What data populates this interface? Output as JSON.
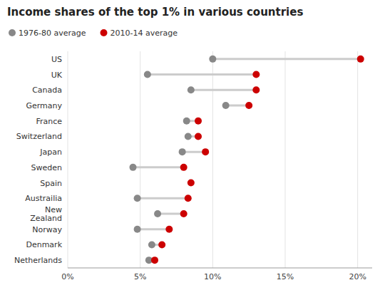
{
  "chart_data": {
    "type": "dumbbell",
    "title": "Income shares of the top 1% in various countries",
    "categories": [
      "US",
      "UK",
      "Canada",
      "Germany",
      "France",
      "Switzerland",
      "Japan",
      "Sweden",
      "Spain",
      "Austrailia",
      "New\nZealand",
      "Norway",
      "Denmark",
      "Netherlands"
    ],
    "series": [
      {
        "name": "1976-80 average",
        "color": "#888888",
        "values": [
          10.0,
          5.5,
          8.5,
          10.9,
          8.2,
          8.3,
          7.9,
          4.5,
          null,
          4.8,
          6.2,
          4.8,
          5.8,
          5.6
        ]
      },
      {
        "name": "2010-14 average",
        "color": "#cc0000",
        "values": [
          20.2,
          13.0,
          13.0,
          12.5,
          9.0,
          9.0,
          9.5,
          8.0,
          8.5,
          8.3,
          8.0,
          7.0,
          6.5,
          6.0
        ]
      }
    ],
    "orientation": "horizontal",
    "xlim": [
      0,
      21
    ],
    "xticks": [
      {
        "value": 0,
        "label": "0%"
      },
      {
        "value": 5,
        "label": "5%"
      },
      {
        "value": 10,
        "label": "10%"
      },
      {
        "value": 15,
        "label": "15%"
      },
      {
        "value": 20,
        "label": "20%"
      }
    ],
    "grid": true,
    "legend": "top"
  }
}
